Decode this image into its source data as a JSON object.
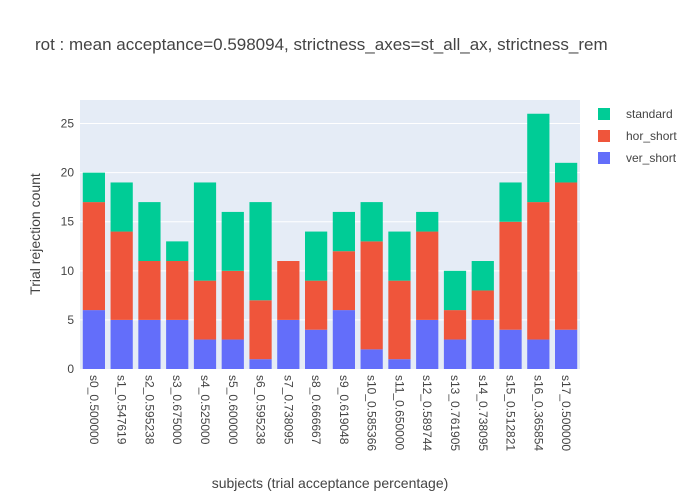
{
  "chart_data": {
    "type": "bar",
    "stacked": true,
    "title": "rot : mean acceptance=0.598094, strictness_axes=st_all_ax, strictness_rem",
    "xlabel": "subjects (trial acceptance percentage)",
    "ylabel": "Trial rejection count",
    "ylim": [
      0,
      27.4
    ],
    "yticks": [
      0,
      5,
      10,
      15,
      20,
      25
    ],
    "grid": true,
    "legend_position": "top-right",
    "categories": [
      "s0_0.500000",
      "s1_0.547619",
      "s2_0.595238",
      "s3_0.675000",
      "s4_0.525000",
      "s5_0.600000",
      "s6_0.595238",
      "s7_0.738095",
      "s8_0.666667",
      "s9_0.619048",
      "s10_0.585366",
      "s11_0.650000",
      "s12_0.589744",
      "s13_0.761905",
      "s14_0.738095",
      "s15_0.512821",
      "s16_0.365854",
      "s17_0.500000"
    ],
    "series": [
      {
        "name": "ver_short",
        "color": "#636efa",
        "values": [
          6,
          5,
          5,
          5,
          3,
          3,
          1,
          5,
          4,
          6,
          2,
          1,
          5,
          3,
          5,
          4,
          3,
          4
        ]
      },
      {
        "name": "hor_short",
        "color": "#ef553b",
        "values": [
          11,
          9,
          6,
          6,
          6,
          7,
          6,
          6,
          5,
          6,
          11,
          8,
          9,
          3,
          3,
          11,
          14,
          15
        ]
      },
      {
        "name": "standard",
        "color": "#00cc96",
        "values": [
          3,
          5,
          6,
          2,
          10,
          6,
          10,
          0,
          5,
          4,
          4,
          5,
          2,
          4,
          3,
          4,
          9,
          2
        ]
      }
    ],
    "legend_order": [
      "standard",
      "hor_short",
      "ver_short"
    ]
  }
}
